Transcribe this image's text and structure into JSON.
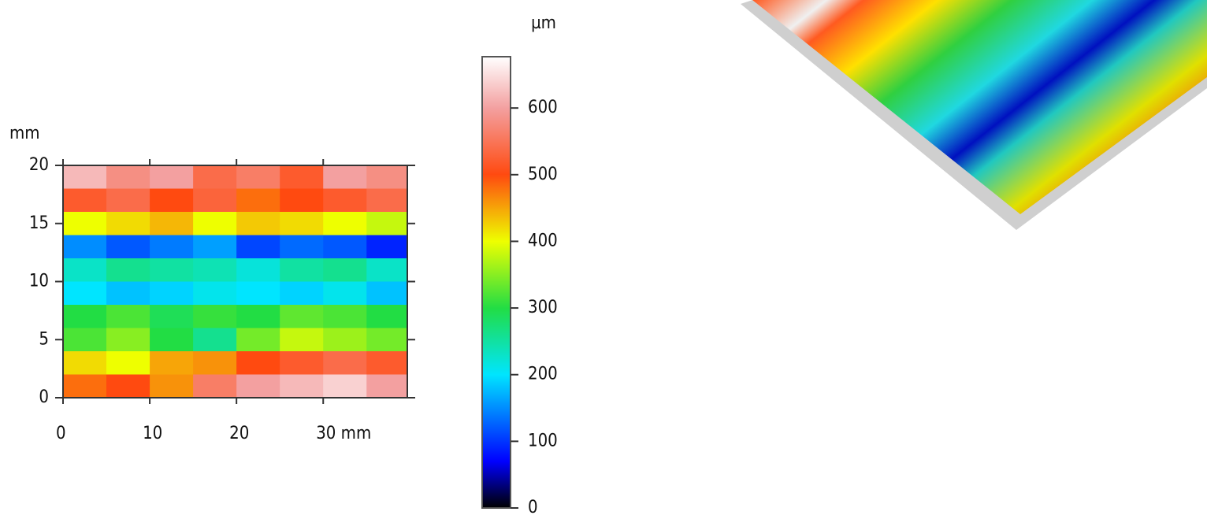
{
  "chart_data": {
    "type": "heatmap",
    "x_unit": "mm",
    "y_unit": "mm",
    "z_unit": "µm",
    "xlim": [
      0,
      39.7
    ],
    "ylim": [
      0,
      20
    ],
    "zlim": [
      0,
      677
    ],
    "xticks": [
      0,
      10,
      20,
      {
        "value": 30,
        "label": "30 mm"
      }
    ],
    "yticks": [
      0,
      5,
      10,
      15,
      20
    ],
    "zticks": [
      0,
      100,
      200,
      300,
      400,
      500,
      600
    ],
    "x_edges": [
      0,
      5,
      10,
      15,
      20,
      25,
      30,
      35,
      39.7
    ],
    "y_edges": [
      20,
      18,
      16,
      14,
      12,
      10,
      8,
      6,
      4,
      2,
      0
    ],
    "values": [
      [
        620,
        580,
        600,
        540,
        560,
        520,
        600,
        580
      ],
      [
        520,
        540,
        500,
        530,
        480,
        500,
        520,
        540
      ],
      [
        400,
        420,
        440,
        400,
        430,
        420,
        400,
        380
      ],
      [
        150,
        120,
        140,
        160,
        110,
        130,
        120,
        90
      ],
      [
        230,
        260,
        250,
        240,
        220,
        250,
        260,
        230
      ],
      [
        200,
        180,
        190,
        210,
        200,
        190,
        210,
        180
      ],
      [
        300,
        320,
        290,
        310,
        300,
        330,
        320,
        300
      ],
      [
        320,
        350,
        300,
        260,
        340,
        380,
        360,
        340
      ],
      [
        420,
        400,
        450,
        460,
        500,
        520,
        540,
        520
      ],
      [
        480,
        500,
        460,
        560,
        600,
        620,
        640,
        600
      ]
    ],
    "colorscale": [
      [
        0,
        "#000000"
      ],
      [
        70,
        "#0000ff"
      ],
      [
        200,
        "#00e5ff"
      ],
      [
        300,
        "#22dd44"
      ],
      [
        400,
        "#eeff00"
      ],
      [
        500,
        "#ff4a10"
      ],
      [
        600,
        "#f3a0a0"
      ],
      [
        677,
        "#ffffff"
      ]
    ]
  }
}
